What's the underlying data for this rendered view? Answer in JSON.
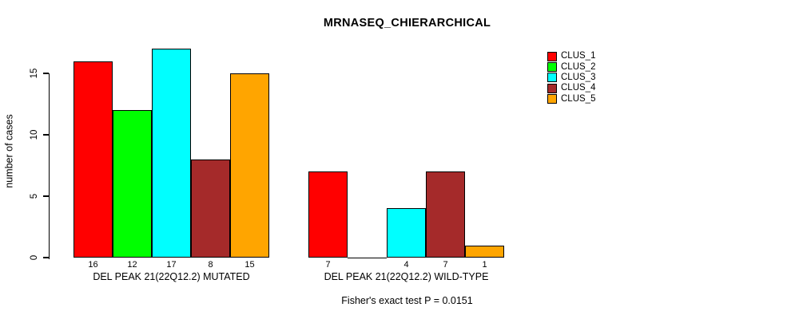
{
  "window": {
    "background_color": "#ffffff",
    "text_color": "#000000"
  },
  "chart_data": {
    "type": "bar",
    "title": "MRNASEQ_CHIERARCHICAL",
    "ylabel": "number of cases",
    "xlabel": "",
    "footnote": "Fisher's exact test P = 0.0151",
    "grid": false,
    "legend_position": "top-right",
    "yticks": [
      0,
      5,
      10,
      15
    ],
    "ylim": [
      0,
      17.5
    ],
    "categories": [
      "DEL PEAK 21(22Q12.2) MUTATED",
      "DEL PEAK 21(22Q12.2) WILD-TYPE"
    ],
    "series": [
      {
        "name": "CLUS_1",
        "color": "#ff0000",
        "values": [
          16,
          7
        ]
      },
      {
        "name": "CLUS_2",
        "color": "#00ff00",
        "values": [
          12,
          0
        ]
      },
      {
        "name": "CLUS_3",
        "color": "#00ffff",
        "values": [
          17,
          4
        ]
      },
      {
        "name": "CLUS_4",
        "color": "#a52a2a",
        "values": [
          8,
          7
        ]
      },
      {
        "name": "CLUS_5",
        "color": "#ffa500",
        "values": [
          15,
          1
        ]
      }
    ],
    "bar_value_labels": {
      "shown": true,
      "note": "value printed under each bar; no label where value is 0",
      "groups": [
        [
          16,
          12,
          17,
          8,
          15
        ],
        [
          7,
          null,
          4,
          7,
          1
        ]
      ]
    }
  }
}
